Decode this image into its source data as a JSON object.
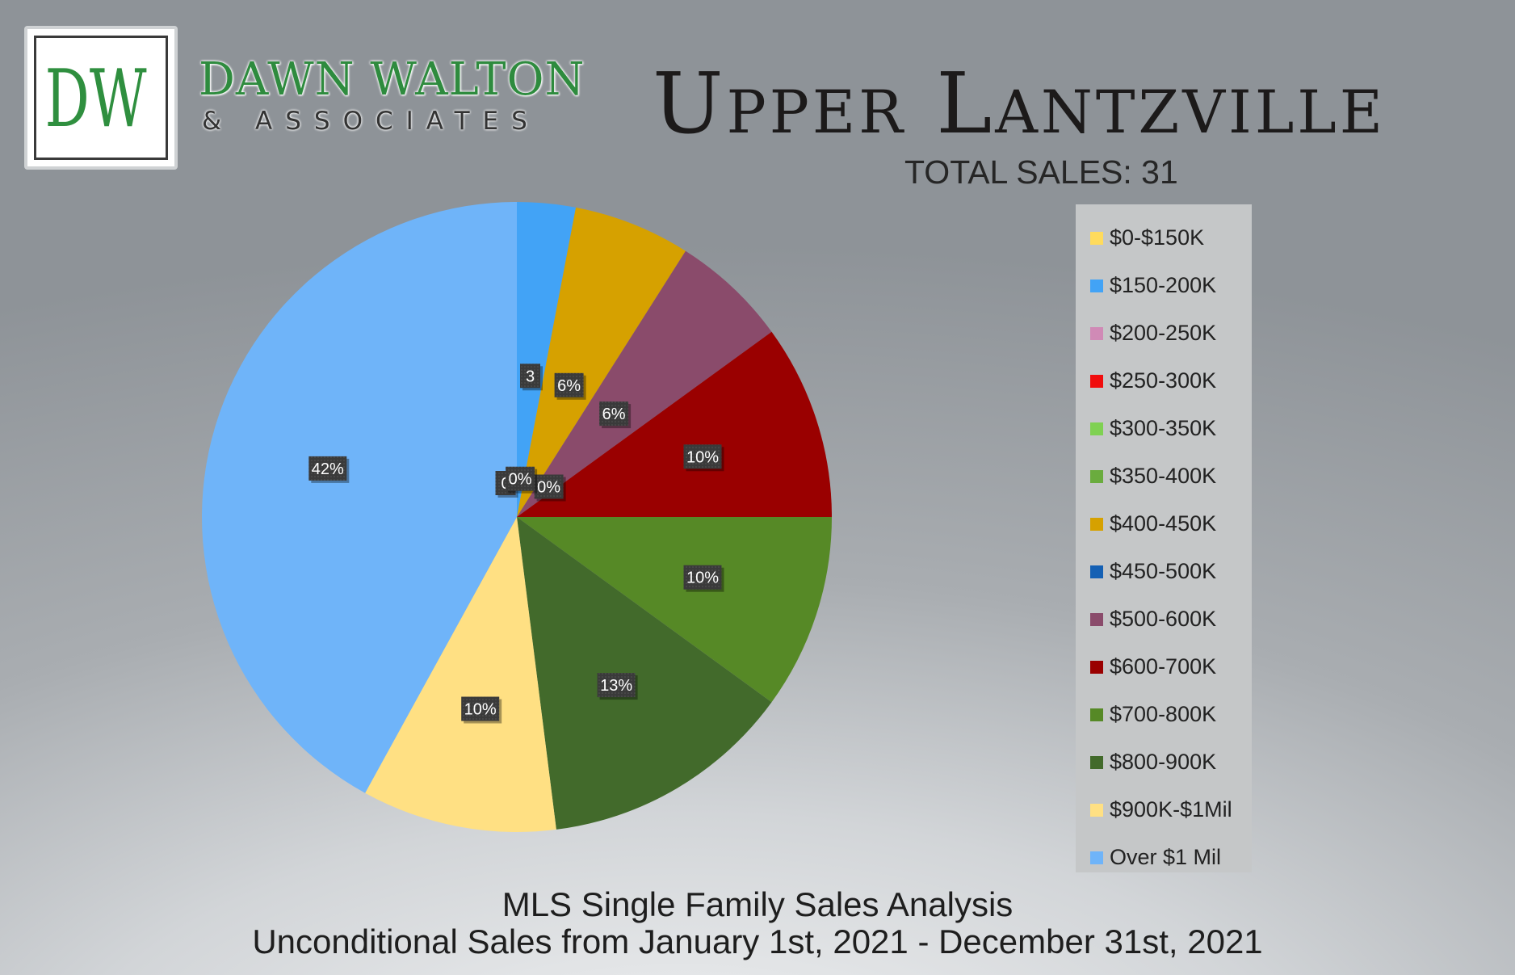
{
  "brand": {
    "monogram": "DW",
    "name": "DAWN WALTON",
    "subtitle": "& ASSOCIATES"
  },
  "header": {
    "title": "Upper Lantzville",
    "total_sales": "TOTAL SALES: 31"
  },
  "footer": {
    "line1": "MLS Single Family Sales Analysis",
    "line2": "Unconditional Sales from January 1st, 2021 - December 31st, 2021"
  },
  "chart_data": {
    "type": "pie",
    "title": "Upper Lantzville",
    "legend_position": "right",
    "slices": [
      {
        "label": "$0-$150K",
        "value": 0,
        "display": "0",
        "color": "#ffdb5c"
      },
      {
        "label": "$150-200K",
        "value": 3,
        "display": "3",
        "color": "#42a3f6"
      },
      {
        "label": "$200-250K",
        "value": 0,
        "display": "0%",
        "color": "#d08ab6"
      },
      {
        "label": "$250-300K",
        "value": 0,
        "display": "",
        "color": "#f10d0d"
      },
      {
        "label": "$300-350K",
        "value": 0,
        "display": "",
        "color": "#7fd152"
      },
      {
        "label": "$350-400K",
        "value": 0,
        "display": "",
        "color": "#6aac3e"
      },
      {
        "label": "$400-450K",
        "value": 6,
        "display": "6%",
        "color": "#d6a100"
      },
      {
        "label": "$450-500K",
        "value": 0,
        "display": "0%",
        "color": "#1460b4"
      },
      {
        "label": "$500-600K",
        "value": 6,
        "display": "6%",
        "color": "#8a4b6b"
      },
      {
        "label": "$600-700K",
        "value": 10,
        "display": "10%",
        "color": "#9a0000"
      },
      {
        "label": "$700-800K",
        "value": 10,
        "display": "10%",
        "color": "#568926"
      },
      {
        "label": "$800-900K",
        "value": 13,
        "display": "13%",
        "color": "#426a2b"
      },
      {
        "label": "$900K-$1Mil",
        "value": 10,
        "display": "10%",
        "color": "#ffe083"
      },
      {
        "label": "Over $1 Mil",
        "value": 42,
        "display": "42%",
        "color": "#6fb4f9"
      }
    ]
  }
}
